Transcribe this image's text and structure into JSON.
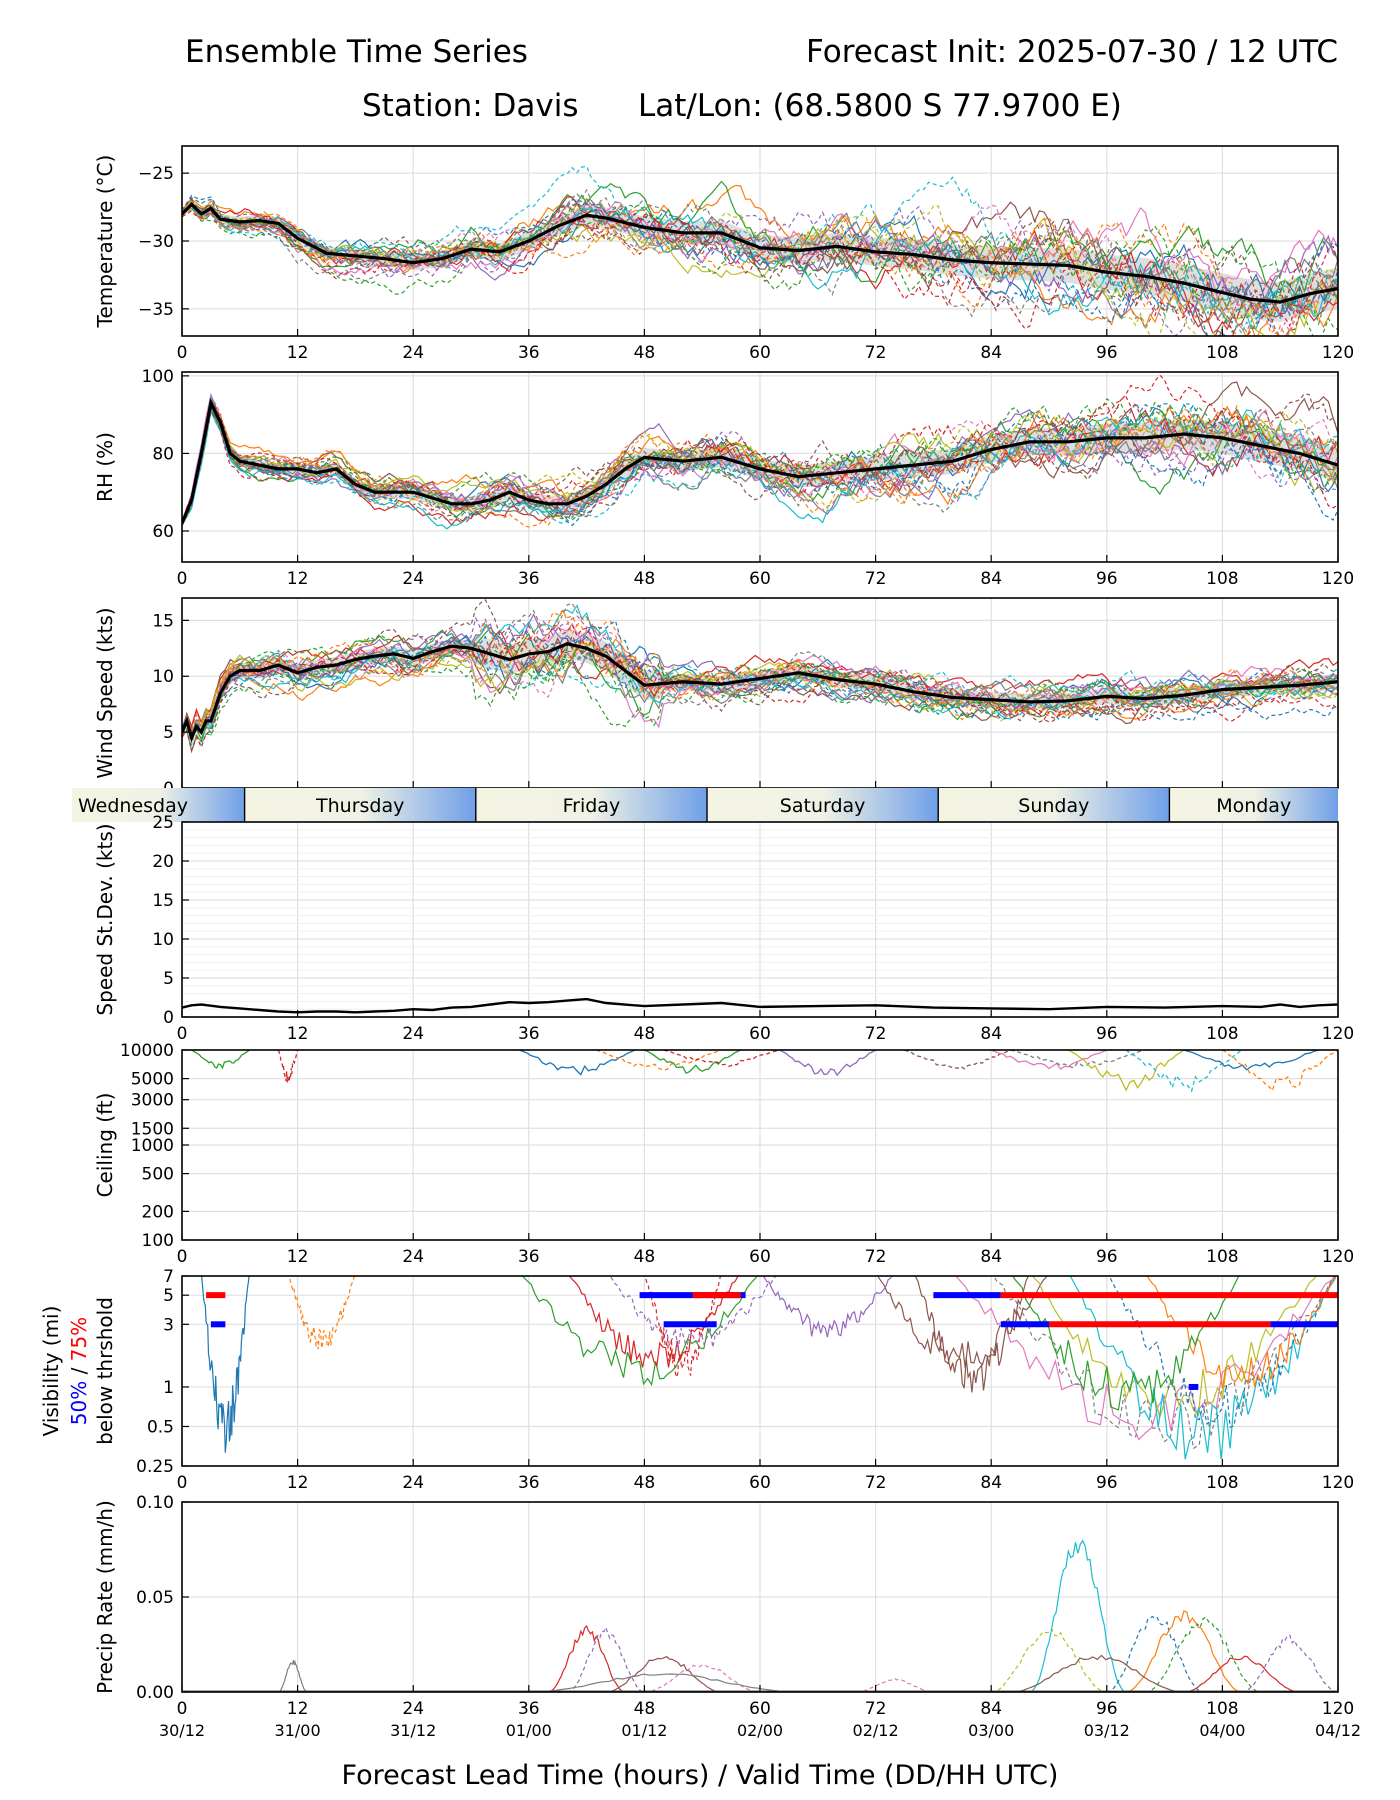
{
  "header": {
    "title": "Ensemble Time Series",
    "init": "Forecast Init: 2025-07-30 / 12 UTC",
    "station": "Station: Davis",
    "latlon": "Lat/Lon: (68.5800 S 77.9700 E)"
  },
  "x_axis_title": "Forecast Lead Time (hours) / Valid Time (DD/HH UTC)",
  "day_labels": [
    "Wednesday",
    "Thursday",
    "Friday",
    "Saturday",
    "Sunday",
    "Monday"
  ],
  "chart_data": [
    {
      "type": "line",
      "ylabel": "Temperature (°C)",
      "xlim": [
        0,
        120
      ],
      "ylim": [
        -37,
        -23
      ],
      "yticks": [
        -35,
        -30,
        -25
      ],
      "xticks": [
        0,
        12,
        24,
        36,
        48,
        60,
        72,
        84,
        96,
        108,
        120
      ],
      "series": [
        {
          "role": "ensemble-mean",
          "color": "#000000",
          "x": [
            0,
            1,
            2,
            3,
            4,
            6,
            8,
            10,
            12,
            15,
            18,
            21,
            24,
            27,
            30,
            33,
            36,
            39,
            42,
            44,
            48,
            52,
            56,
            60,
            64,
            68,
            72,
            76,
            80,
            84,
            88,
            92,
            96,
            100,
            104,
            108,
            111,
            114,
            117,
            120
          ],
          "values": [
            -28.0,
            -27.3,
            -28.0,
            -27.6,
            -28.4,
            -28.6,
            -28.5,
            -28.7,
            -29.8,
            -30.9,
            -31.1,
            -31.3,
            -31.6,
            -31.3,
            -30.6,
            -30.8,
            -30.0,
            -28.9,
            -28.1,
            -28.3,
            -29.0,
            -29.4,
            -29.4,
            -30.5,
            -30.7,
            -30.4,
            -30.8,
            -31.0,
            -31.4,
            -31.6,
            -31.7,
            -31.8,
            -32.3,
            -32.6,
            -33.1,
            -33.8,
            -34.3,
            -34.5,
            -33.9,
            -33.5
          ]
        }
      ]
    },
    {
      "type": "line",
      "ylabel": "RH (%)",
      "xlim": [
        0,
        120
      ],
      "ylim": [
        52,
        101
      ],
      "yticks": [
        60,
        80,
        100
      ],
      "xticks": [
        0,
        12,
        24,
        36,
        48,
        60,
        72,
        84,
        96,
        108,
        120
      ],
      "series": [
        {
          "role": "ensemble-mean",
          "color": "#000000",
          "x": [
            0,
            1,
            2,
            3,
            4,
            5,
            6,
            8,
            10,
            12,
            14,
            16,
            18,
            20,
            24,
            28,
            30,
            32,
            34,
            36,
            38,
            40,
            42,
            44,
            46,
            48,
            52,
            56,
            60,
            64,
            68,
            72,
            76,
            80,
            84,
            88,
            92,
            96,
            100,
            104,
            108,
            112,
            116,
            120
          ],
          "values": [
            62,
            68,
            80,
            93,
            88,
            80,
            78,
            77,
            76,
            76,
            75,
            76,
            72,
            70,
            70,
            67,
            67,
            68,
            70,
            68,
            67,
            67,
            69,
            72,
            76,
            79,
            78,
            79,
            76,
            74,
            75,
            76,
            77,
            78,
            81,
            83,
            83,
            84,
            84,
            85,
            84,
            82,
            80,
            77
          ]
        }
      ]
    },
    {
      "type": "line",
      "ylabel": "Wind Speed (kts)",
      "xlim": [
        0,
        120
      ],
      "ylim": [
        0,
        17
      ],
      "yticks": [
        0,
        5,
        10,
        15
      ],
      "xticks": [
        0,
        12,
        24,
        36,
        48,
        60,
        72,
        84,
        96,
        108,
        120
      ],
      "series": [
        {
          "role": "ensemble-mean",
          "color": "#000000",
          "x": [
            0,
            0.5,
            1,
            1.5,
            2,
            2.5,
            3,
            4,
            5,
            6,
            8,
            10,
            12,
            14,
            16,
            18,
            20,
            22,
            24,
            26,
            28,
            30,
            32,
            34,
            36,
            38,
            40,
            42,
            44,
            46,
            48,
            52,
            56,
            60,
            64,
            68,
            72,
            76,
            80,
            84,
            88,
            92,
            96,
            100,
            104,
            108,
            112,
            116,
            120
          ],
          "values": [
            5.0,
            6.0,
            4.5,
            5.5,
            5.0,
            6.0,
            6.0,
            8.5,
            10.0,
            10.5,
            10.5,
            11.0,
            10.3,
            10.8,
            11.0,
            11.5,
            11.8,
            12.0,
            11.6,
            12.2,
            12.7,
            12.5,
            12.0,
            11.5,
            12.0,
            12.2,
            12.9,
            12.5,
            11.8,
            10.5,
            9.2,
            9.5,
            9.3,
            9.8,
            10.3,
            9.7,
            9.3,
            8.6,
            8.1,
            7.9,
            7.7,
            7.8,
            8.2,
            8.0,
            8.3,
            8.8,
            9.0,
            9.2,
            9.5
          ]
        }
      ]
    },
    {
      "type": "line",
      "ylabel": "Speed St.Dev. (kts)",
      "xlim": [
        0,
        120
      ],
      "ylim": [
        0,
        25
      ],
      "yticks": [
        0,
        5,
        10,
        15,
        20,
        25
      ],
      "xticks": [
        0,
        12,
        24,
        36,
        48,
        60,
        72,
        84,
        96,
        108,
        120
      ],
      "series": [
        {
          "role": "ensemble-spread",
          "color": "#000000",
          "x": [
            0,
            1,
            2,
            4,
            6,
            8,
            10,
            12,
            14,
            16,
            18,
            20,
            22,
            24,
            26,
            28,
            30,
            32,
            34,
            36,
            38,
            40,
            42,
            44,
            48,
            52,
            56,
            60,
            66,
            72,
            78,
            84,
            90,
            96,
            102,
            108,
            112,
            114,
            116,
            118,
            120
          ],
          "values": [
            1.2,
            1.5,
            1.6,
            1.3,
            1.1,
            0.9,
            0.7,
            0.6,
            0.7,
            0.7,
            0.6,
            0.7,
            0.8,
            1.0,
            0.9,
            1.2,
            1.3,
            1.6,
            1.9,
            1.8,
            1.9,
            2.1,
            2.3,
            1.8,
            1.4,
            1.6,
            1.8,
            1.3,
            1.4,
            1.5,
            1.2,
            1.1,
            1.0,
            1.3,
            1.2,
            1.4,
            1.3,
            1.6,
            1.3,
            1.5,
            1.6
          ]
        }
      ]
    },
    {
      "type": "line",
      "ylabel": "Ceiling (ft)",
      "yscale": "log",
      "xlim": [
        0,
        120
      ],
      "ylim": [
        100,
        10000
      ],
      "yticks": [
        100,
        200,
        500,
        1000,
        1500,
        3000,
        5000,
        10000
      ],
      "xticks": [
        0,
        12,
        24,
        36,
        48,
        60,
        72,
        84,
        96,
        108,
        120
      ]
    },
    {
      "type": "line",
      "ylabel": "Visibility (mi)",
      "ylabel_legend": [
        "50%",
        "/",
        "75%"
      ],
      "ylabel_legend_colors": [
        "#0000ff",
        "#000000",
        "#ff0000"
      ],
      "ylabel2": "below thrshold",
      "yscale": "log",
      "xlim": [
        0,
        120
      ],
      "ylim": [
        0.25,
        7
      ],
      "yticks": [
        0.25,
        0.5,
        1,
        3,
        5,
        7
      ],
      "xticks": [
        0,
        12,
        24,
        36,
        48,
        60,
        72,
        84,
        96,
        108,
        120
      ],
      "threshold_bars": [
        {
          "color": "#ff0000",
          "y": 5,
          "x": [
            2.5,
            4.5
          ]
        },
        {
          "color": "#0000ff",
          "y": 3,
          "x": [
            3,
            4.5
          ]
        },
        {
          "color": "#0000ff",
          "y": 5,
          "x": [
            47.5,
            58.5
          ]
        },
        {
          "color": "#ff0000",
          "y": 5,
          "x": [
            53,
            58
          ]
        },
        {
          "color": "#0000ff",
          "y": 3,
          "x": [
            50,
            55.5
          ]
        },
        {
          "color": "#0000ff",
          "y": 5,
          "x": [
            78,
            85
          ]
        },
        {
          "color": "#ff0000",
          "y": 5,
          "x": [
            85,
            120
          ]
        },
        {
          "color": "#0000ff",
          "y": 3,
          "x": [
            85,
            90
          ]
        },
        {
          "color": "#ff0000",
          "y": 3,
          "x": [
            90,
            113
          ]
        },
        {
          "color": "#0000ff",
          "y": 3,
          "x": [
            113,
            120
          ]
        },
        {
          "color": "#0000ff",
          "y": 1,
          "x": [
            104.5,
            105.5
          ]
        }
      ]
    },
    {
      "type": "line",
      "ylabel": "Precip Rate (mm/h)",
      "xlim": [
        0,
        120
      ],
      "ylim": [
        0,
        0.1
      ],
      "yticks": [
        0.0,
        0.05,
        0.1
      ],
      "ytick_labels": [
        "0.00",
        "0.05",
        "0.10"
      ],
      "xticks": [
        0,
        12,
        24,
        36,
        48,
        60,
        72,
        84,
        96,
        108,
        120
      ],
      "xtick_labels2": [
        "30/12",
        "31/00",
        "31/12",
        "01/00",
        "01/12",
        "02/00",
        "02/12",
        "03/00",
        "03/12",
        "04/00",
        "04/12"
      ]
    }
  ]
}
